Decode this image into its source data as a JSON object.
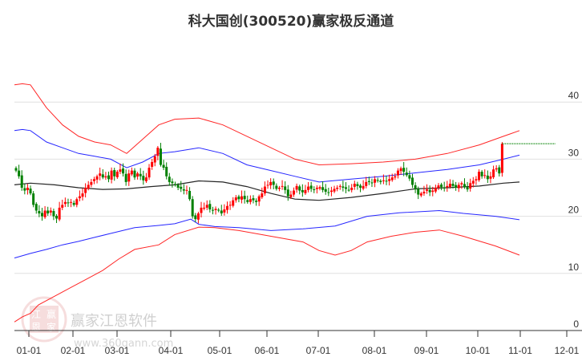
{
  "title": "科大国创(300520)赢家极反通道",
  "watermark": {
    "brand": "赢家江恩软件",
    "url": "www.360gann.com",
    "seal": [
      "江",
      "赢",
      "恩",
      "家"
    ]
  },
  "colors": {
    "up": "#ff0000",
    "down": "#008000",
    "outer_band": "#ff0000",
    "inner_band": "#0000ff",
    "mid_line": "#000000",
    "last_price_line": "#008000",
    "grid": "#e0e0e0"
  },
  "chart_data": {
    "type": "candlestick",
    "title": "科大国创(300520)赢家极反通道",
    "xlabel": "",
    "ylabel": "",
    "ylim": [
      0,
      45
    ],
    "y_ticks": [
      0,
      10,
      20,
      30,
      40
    ],
    "x_ticks": [
      "01-01",
      "02-01",
      "03-01",
      "04-01",
      "05-01",
      "06-01",
      "07-01",
      "08-01",
      "09-01",
      "10-01",
      "11-01",
      "12-01"
    ],
    "grid": true,
    "last_price": 32.7,
    "series": [
      {
        "name": "upper_outer",
        "color": "#ff0000",
        "points": [
          [
            0,
            43
          ],
          [
            10,
            43.2
          ],
          [
            20,
            43
          ],
          [
            40,
            39
          ],
          [
            60,
            36
          ],
          [
            80,
            34
          ],
          [
            100,
            33
          ],
          [
            120,
            32.5
          ],
          [
            140,
            31
          ],
          [
            160,
            33.5
          ],
          [
            180,
            36
          ],
          [
            200,
            37
          ],
          [
            230,
            37.2
          ],
          [
            260,
            36
          ],
          [
            290,
            34
          ],
          [
            320,
            32
          ],
          [
            350,
            30
          ],
          [
            380,
            29
          ],
          [
            420,
            29.2
          ],
          [
            460,
            29.5
          ],
          [
            500,
            30
          ],
          [
            540,
            31
          ],
          [
            580,
            32.5
          ],
          [
            610,
            34
          ],
          [
            630,
            35
          ]
        ]
      },
      {
        "name": "upper_inner",
        "color": "#0000ff",
        "points": [
          [
            0,
            35
          ],
          [
            10,
            35.2
          ],
          [
            20,
            35
          ],
          [
            40,
            33
          ],
          [
            60,
            32
          ],
          [
            80,
            31
          ],
          [
            100,
            30.5
          ],
          [
            120,
            30
          ],
          [
            140,
            28.5
          ],
          [
            160,
            29.5
          ],
          [
            180,
            31
          ],
          [
            200,
            31.3
          ],
          [
            230,
            32
          ],
          [
            260,
            31
          ],
          [
            290,
            29
          ],
          [
            320,
            28
          ],
          [
            350,
            27
          ],
          [
            380,
            26
          ],
          [
            420,
            26.5
          ],
          [
            460,
            27
          ],
          [
            500,
            27.6
          ],
          [
            540,
            28.2
          ],
          [
            580,
            29
          ],
          [
            610,
            30
          ],
          [
            630,
            30.7
          ]
        ]
      },
      {
        "name": "middle",
        "color": "#000000",
        "points": [
          [
            0,
            25.5
          ],
          [
            20,
            25.8
          ],
          [
            50,
            25.5
          ],
          [
            80,
            25
          ],
          [
            110,
            24.7
          ],
          [
            140,
            24.8
          ],
          [
            170,
            25.2
          ],
          [
            200,
            25.5
          ],
          [
            230,
            26.2
          ],
          [
            260,
            26
          ],
          [
            290,
            25.2
          ],
          [
            320,
            24
          ],
          [
            350,
            23
          ],
          [
            380,
            22.8
          ],
          [
            420,
            23.3
          ],
          [
            460,
            24
          ],
          [
            500,
            24.8
          ],
          [
            540,
            25
          ],
          [
            580,
            25.3
          ],
          [
            610,
            25.8
          ],
          [
            630,
            26
          ]
        ]
      },
      {
        "name": "lower_inner",
        "color": "#0000ff",
        "points": [
          [
            0,
            12.7
          ],
          [
            20,
            13.5
          ],
          [
            40,
            14.2
          ],
          [
            60,
            15
          ],
          [
            80,
            15.6
          ],
          [
            100,
            16.3
          ],
          [
            120,
            17
          ],
          [
            150,
            18
          ],
          [
            180,
            18.4
          ],
          [
            200,
            18.7
          ],
          [
            220,
            19.5
          ],
          [
            230,
            18.6
          ],
          [
            250,
            18.2
          ],
          [
            280,
            18
          ],
          [
            320,
            17.5
          ],
          [
            360,
            17.8
          ],
          [
            400,
            18.3
          ],
          [
            440,
            20
          ],
          [
            480,
            20.6
          ],
          [
            530,
            21
          ],
          [
            560,
            20.5
          ],
          [
            600,
            20
          ],
          [
            630,
            19.4
          ]
        ]
      },
      {
        "name": "lower_outer",
        "color": "#ff0000",
        "points": [
          [
            0,
            1.5
          ],
          [
            10,
            2.4
          ],
          [
            20,
            3
          ],
          [
            30,
            4.5
          ],
          [
            50,
            6
          ],
          [
            70,
            7.5
          ],
          [
            90,
            9
          ],
          [
            110,
            10.5
          ],
          [
            130,
            12.5
          ],
          [
            150,
            14.2
          ],
          [
            180,
            15
          ],
          [
            200,
            16.8
          ],
          [
            230,
            18.1
          ],
          [
            250,
            18
          ],
          [
            280,
            17.5
          ],
          [
            320,
            16.5
          ],
          [
            360,
            15.5
          ],
          [
            380,
            14
          ],
          [
            400,
            13.2
          ],
          [
            420,
            14
          ],
          [
            440,
            15.5
          ],
          [
            470,
            16.5
          ],
          [
            500,
            17.2
          ],
          [
            530,
            17.6
          ],
          [
            560,
            16.5
          ],
          [
            600,
            14.8
          ],
          [
            630,
            13.2
          ]
        ]
      }
    ],
    "candles_summary": "approx. 195 daily candles, Jan–Oct; price ranges ~19 to ~32.7; sharp drop late March to ~19, recovery, consolidation 22–27, spike to 32.7 at end",
    "closes": [
      28,
      27,
      25,
      24.5,
      25,
      24,
      22,
      21,
      20.5,
      20,
      21,
      20.5,
      21,
      20,
      19.6,
      21.5,
      22,
      22.5,
      22.3,
      22.5,
      22,
      23,
      23.5,
      24,
      25,
      25.5,
      26,
      26.5,
      27,
      27.5,
      26.8,
      27,
      26.5,
      28,
      27,
      27.8,
      28.2,
      27.5,
      26,
      27.5,
      28,
      26.8,
      27.5,
      27,
      26.3,
      26.8,
      28.5,
      29.5,
      30.5,
      32,
      29,
      28.5,
      27,
      26,
      25.8,
      25.5,
      25,
      24.8,
      24.5,
      24.6,
      23,
      20,
      19.5,
      20.5,
      21.5,
      21.5,
      22,
      21.2,
      21,
      21.3,
      21,
      20.5,
      21.2,
      21.8,
      22,
      22.8,
      23.3,
      23,
      23.5,
      23,
      22.5,
      23,
      22.8,
      22.5,
      23.5,
      24,
      25.2,
      25.5,
      26,
      25.5,
      24.8,
      25,
      25.3,
      24.6,
      23.5,
      23.8,
      24.5,
      25.3,
      24.5,
      24.2,
      24.6,
      25.2,
      24.8,
      24.7,
      25,
      25.1,
      24.6,
      24.3,
      24.2,
      24.5,
      24.8,
      25,
      25.3,
      25,
      24.8,
      24.6,
      25,
      25.7,
      25.3,
      25,
      25.3,
      26,
      26,
      25.8,
      26.5,
      26.2,
      26,
      26.3,
      26.1,
      26.5,
      26.8,
      27,
      28,
      28.4,
      27.8,
      27.2,
      26.6,
      25.5,
      24.7,
      23.8,
      24,
      24.3,
      24.7,
      24.2,
      24.5,
      25,
      25.4,
      25.1,
      25,
      25.3,
      25.7,
      25.3,
      25,
      25.5,
      25.8,
      25.1,
      24.7,
      25.8,
      26.2,
      26.5,
      27.8,
      27,
      27.2,
      26.5,
      27,
      28.2,
      28.4,
      27.5,
      32.7
    ]
  }
}
